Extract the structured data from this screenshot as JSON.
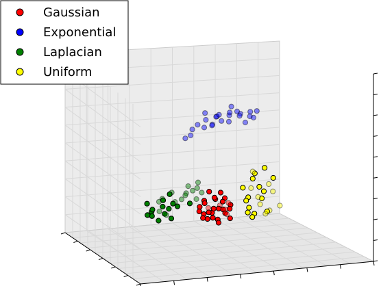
{
  "chart_data": {
    "type": "scatter",
    "title": "",
    "xlabel": "",
    "ylabel": "",
    "zlabel": "",
    "projection": "3d",
    "grid": true,
    "legend": "top-left",
    "series": [
      {
        "name": "Gaussian",
        "color": "#ff0000",
        "points": [
          [
            2.4,
            0.2,
            0.5
          ],
          [
            2.7,
            0.4,
            0.7
          ],
          [
            2.1,
            -0.1,
            0.8
          ],
          [
            2.9,
            0.1,
            0.4
          ],
          [
            2.5,
            0.6,
            1.0
          ],
          [
            2.2,
            0.3,
            0.2
          ],
          [
            2.8,
            -0.2,
            0.6
          ],
          [
            2.6,
            0.0,
            1.2
          ],
          [
            2.3,
            0.5,
            0.3
          ],
          [
            3.0,
            0.3,
            0.9
          ],
          [
            2.0,
            0.1,
            0.6
          ],
          [
            2.5,
            -0.3,
            0.4
          ],
          [
            2.7,
            0.7,
            0.5
          ],
          [
            2.4,
            0.4,
            1.4
          ],
          [
            2.9,
            0.5,
            0.2
          ],
          [
            2.1,
            0.6,
            0.9
          ],
          [
            2.6,
            0.2,
            0.1
          ],
          [
            2.3,
            -0.2,
            1.1
          ],
          [
            2.8,
            0.3,
            1.3
          ],
          [
            2.5,
            0.1,
            0.7
          ],
          [
            3.1,
            0.0,
            0.6
          ],
          [
            2.2,
            0.0,
            0.4
          ],
          [
            2.6,
            0.8,
            0.8
          ],
          [
            2.4,
            -0.4,
            0.9
          ],
          [
            2.7,
            0.2,
            1.6
          ],
          [
            2.0,
            0.4,
            0.3
          ],
          [
            2.9,
            -0.1,
            1.0
          ],
          [
            2.5,
            0.5,
            0.0
          ],
          [
            2.3,
            0.2,
            1.7
          ],
          [
            2.8,
            0.6,
            1.1
          ]
        ]
      },
      {
        "name": "Exponential",
        "color": "#0000ff",
        "points": [
          [
            1.5,
            1.8,
            6.2
          ],
          [
            1.8,
            2.0,
            6.4
          ],
          [
            2.1,
            2.3,
            6.5
          ],
          [
            2.4,
            2.5,
            6.6
          ],
          [
            2.7,
            2.6,
            6.7
          ],
          [
            1.3,
            1.6,
            5.9
          ],
          [
            1.6,
            2.1,
            6.0
          ],
          [
            1.9,
            1.7,
            6.3
          ],
          [
            2.2,
            2.7,
            6.8
          ],
          [
            2.5,
            2.2,
            6.4
          ],
          [
            1.2,
            1.4,
            5.6
          ],
          [
            1.4,
            1.9,
            5.8
          ],
          [
            1.7,
            2.4,
            6.6
          ],
          [
            2.0,
            1.9,
            6.1
          ],
          [
            2.3,
            2.0,
            6.9
          ],
          [
            2.6,
            2.8,
            6.5
          ],
          [
            2.9,
            2.4,
            6.3
          ],
          [
            1.1,
            1.5,
            5.3
          ],
          [
            1.6,
            1.5,
            6.5
          ],
          [
            2.0,
            2.5,
            6.2
          ],
          [
            2.8,
            2.9,
            6.8
          ],
          [
            2.2,
            2.1,
            6.6
          ],
          [
            1.0,
            1.3,
            5.1
          ],
          [
            2.4,
            2.9,
            6.2
          ],
          [
            1.8,
            1.6,
            5.8
          ]
        ]
      },
      {
        "name": "Laplacian",
        "color": "#008000",
        "points": [
          [
            0.6,
            0.4,
            1.1
          ],
          [
            0.9,
            0.7,
            1.4
          ],
          [
            0.3,
            0.2,
            0.8
          ],
          [
            1.2,
            0.9,
            1.9
          ],
          [
            0.8,
            0.1,
            0.6
          ],
          [
            1.5,
            1.1,
            2.2
          ],
          [
            0.5,
            0.6,
            1.6
          ],
          [
            1.0,
            0.3,
            1.2
          ],
          [
            0.2,
            0.5,
            1.0
          ],
          [
            1.3,
            0.6,
            1.7
          ],
          [
            0.7,
            0.9,
            2.0
          ],
          [
            1.1,
            1.3,
            2.4
          ],
          [
            0.4,
            0.0,
            0.5
          ],
          [
            0.9,
            0.2,
            0.9
          ],
          [
            1.6,
            0.8,
            1.5
          ],
          [
            0.1,
            0.3,
            1.3
          ],
          [
            0.6,
            0.7,
            0.7
          ],
          [
            1.4,
            1.4,
            2.6
          ],
          [
            0.8,
            0.5,
            1.8
          ],
          [
            0.3,
            0.8,
            1.5
          ],
          [
            1.2,
            0.2,
            1.0
          ],
          [
            0.5,
            0.3,
            0.3
          ],
          [
            1.7,
            1.0,
            1.9
          ],
          [
            1.0,
            1.0,
            1.6
          ],
          [
            0.7,
            0.2,
            1.4
          ],
          [
            0.4,
            0.6,
            0.9
          ],
          [
            1.3,
            1.2,
            2.1
          ],
          [
            0.9,
            0.4,
            0.4
          ],
          [
            0.2,
            0.1,
            0.6
          ],
          [
            1.5,
            0.5,
            1.2
          ]
        ]
      },
      {
        "name": "Uniform",
        "color": "#ffff00",
        "points": [
          [
            3.6,
            0.3,
            0.4
          ],
          [
            3.9,
            0.6,
            0.9
          ],
          [
            4.2,
            0.2,
            1.5
          ],
          [
            3.5,
            0.8,
            1.9
          ],
          [
            4.0,
            -0.1,
            0.2
          ],
          [
            4.4,
            0.5,
            2.3
          ],
          [
            3.7,
            0.1,
            1.2
          ],
          [
            4.1,
            0.9,
            0.6
          ],
          [
            3.8,
            0.4,
            2.6
          ],
          [
            4.3,
            -0.2,
            1.0
          ],
          [
            3.6,
            0.7,
            2.8
          ],
          [
            4.0,
            0.3,
            1.8
          ],
          [
            4.5,
            0.8,
            0.8
          ],
          [
            3.9,
            -0.3,
            0.5
          ],
          [
            4.2,
            0.6,
            2.0
          ],
          [
            3.7,
            0.9,
            1.4
          ],
          [
            4.4,
            0.0,
            0.3
          ],
          [
            3.8,
            0.2,
            0.1
          ],
          [
            4.1,
            0.5,
            2.9
          ],
          [
            3.5,
            0.4,
            1.1
          ],
          [
            4.3,
            0.7,
            1.6
          ],
          [
            3.9,
            0.0,
            2.2
          ],
          [
            4.0,
            0.8,
            0.4
          ],
          [
            3.6,
            -0.1,
            1.7
          ]
        ]
      }
    ]
  }
}
